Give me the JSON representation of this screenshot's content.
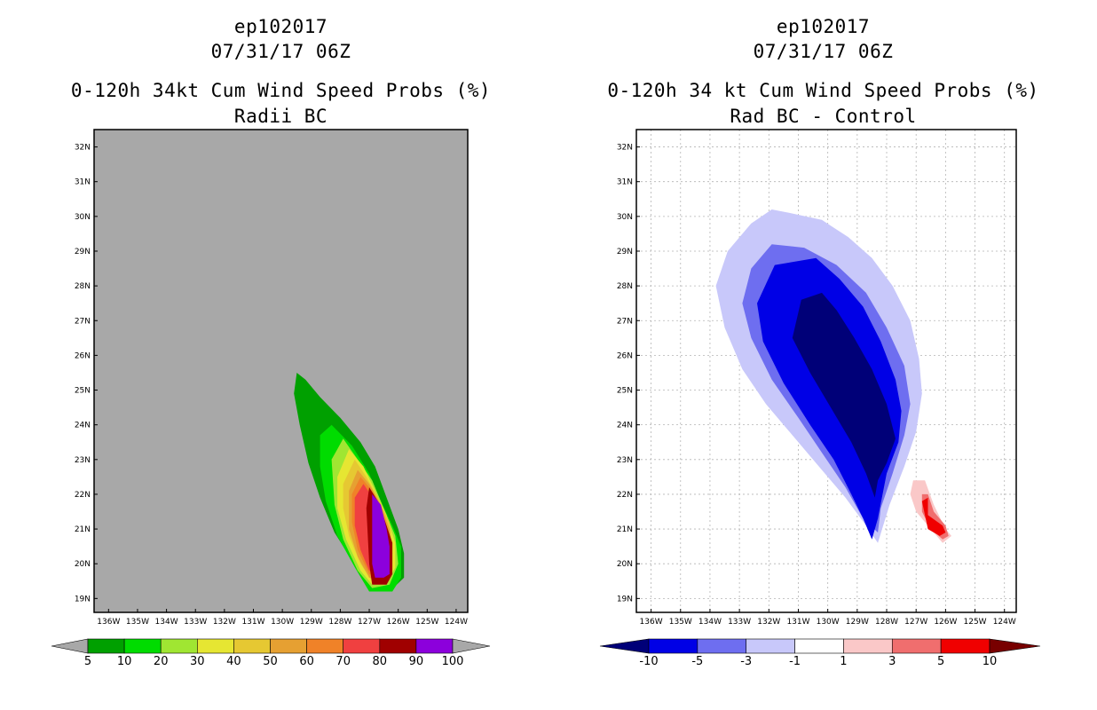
{
  "chart_data": [
    {
      "type": "contour-map",
      "storm_id": "ep102017",
      "datetime": "07/31/17 06Z",
      "title": "0-120h 34kt Cum Wind Speed Probs (%)",
      "subtitle": "Radii BC",
      "x_ticks": [
        "136W",
        "135W",
        "134W",
        "133W",
        "132W",
        "131W",
        "130W",
        "129W",
        "128W",
        "127W",
        "126W",
        "125W",
        "124W"
      ],
      "y_ticks": [
        "32N",
        "31N",
        "30N",
        "29N",
        "28N",
        "27N",
        "26N",
        "25N",
        "24N",
        "23N",
        "22N",
        "21N",
        "20N",
        "19N"
      ],
      "xlim": [
        -136.5,
        -123.6
      ],
      "ylim": [
        18.6,
        32.5
      ],
      "background": "#a8a8a8",
      "colorbar": {
        "labels": [
          "5",
          "10",
          "20",
          "30",
          "40",
          "50",
          "60",
          "70",
          "80",
          "90",
          "100"
        ],
        "colors": [
          "#00a000",
          "#00dc00",
          "#a0e632",
          "#e6e632",
          "#e6c832",
          "#e6a032",
          "#f08228",
          "#f04040",
          "#a00000",
          "#8c00dc"
        ],
        "end_color": "#a8a8a8"
      },
      "contours": [
        {
          "level": 5,
          "color": "#00a000",
          "points": [
            [
              -129.5,
              25.5
            ],
            [
              -129.2,
              25.3
            ],
            [
              -128.7,
              24.8
            ],
            [
              -128,
              24.2
            ],
            [
              -127.3,
              23.5
            ],
            [
              -126.8,
              22.8
            ],
            [
              -126.4,
              21.9
            ],
            [
              -126,
              21
            ],
            [
              -125.8,
              20.3
            ],
            [
              -125.8,
              19.6
            ],
            [
              -126.3,
              19.2
            ],
            [
              -127,
              19.3
            ],
            [
              -127.6,
              20.1
            ],
            [
              -128.2,
              20.9
            ],
            [
              -128.7,
              21.9
            ],
            [
              -129.1,
              22.9
            ],
            [
              -129.4,
              24
            ],
            [
              -129.6,
              24.9
            ]
          ]
        },
        {
          "level": 10,
          "color": "#00dc00",
          "points": [
            [
              -128.7,
              23.7
            ],
            [
              -128.3,
              24
            ],
            [
              -127.6,
              23.4
            ],
            [
              -127,
              22.6
            ],
            [
              -126.6,
              21.8
            ],
            [
              -126.2,
              21.1
            ],
            [
              -125.9,
              20.5
            ],
            [
              -125.9,
              19.6
            ],
            [
              -126.2,
              19.2
            ],
            [
              -127,
              19.2
            ],
            [
              -127.5,
              19.9
            ],
            [
              -128.1,
              20.8
            ],
            [
              -128.5,
              21.8
            ],
            [
              -128.7,
              22.8
            ]
          ]
        },
        {
          "level": 20,
          "color": "#a0e632",
          "points": [
            [
              -128.3,
              23
            ],
            [
              -127.9,
              23.6
            ],
            [
              -127.4,
              23
            ],
            [
              -126.9,
              22.4
            ],
            [
              -126.5,
              21.6
            ],
            [
              -126.1,
              20.8
            ],
            [
              -126,
              20
            ],
            [
              -126.3,
              19.4
            ],
            [
              -126.9,
              19.3
            ],
            [
              -127.4,
              19.8
            ],
            [
              -127.9,
              20.7
            ],
            [
              -128.2,
              21.7
            ]
          ]
        },
        {
          "level": 30,
          "color": "#e6e632",
          "points": [
            [
              -128.1,
              22.5
            ],
            [
              -127.7,
              23.3
            ],
            [
              -127.2,
              22.8
            ],
            [
              -126.8,
              22.1
            ],
            [
              -126.4,
              21.4
            ],
            [
              -126.1,
              20.6
            ],
            [
              -126.1,
              19.9
            ],
            [
              -126.4,
              19.4
            ],
            [
              -126.9,
              19.4
            ],
            [
              -127.3,
              19.8
            ],
            [
              -127.8,
              20.7
            ],
            [
              -128.1,
              21.6
            ]
          ]
        },
        {
          "level": 40,
          "color": "#e6c832",
          "points": [
            [
              -127.9,
              22.3
            ],
            [
              -127.5,
              23
            ],
            [
              -127.1,
              22.5
            ],
            [
              -126.7,
              21.9
            ],
            [
              -126.3,
              21.2
            ],
            [
              -126.2,
              20.5
            ],
            [
              -126.2,
              19.9
            ],
            [
              -126.5,
              19.5
            ],
            [
              -126.9,
              19.5
            ],
            [
              -127.3,
              20
            ],
            [
              -127.7,
              20.8
            ],
            [
              -127.9,
              21.6
            ]
          ]
        },
        {
          "level": 50,
          "color": "#e6a032",
          "points": [
            [
              -127.7,
              22.1
            ],
            [
              -127.4,
              22.7
            ],
            [
              -127,
              22.3
            ],
            [
              -126.6,
              21.7
            ],
            [
              -126.3,
              21
            ],
            [
              -126.2,
              20.3
            ],
            [
              -126.3,
              19.7
            ],
            [
              -126.6,
              19.5
            ],
            [
              -127,
              19.6
            ],
            [
              -127.4,
              20.2
            ],
            [
              -127.7,
              21
            ]
          ]
        },
        {
          "level": 60,
          "color": "#f08228",
          "points": [
            [
              -127.6,
              22
            ],
            [
              -127.3,
              22.5
            ],
            [
              -126.9,
              22.1
            ],
            [
              -126.5,
              21.4
            ],
            [
              -126.3,
              20.7
            ],
            [
              -126.3,
              19.8
            ],
            [
              -126.6,
              19.6
            ],
            [
              -127,
              19.7
            ],
            [
              -127.4,
              20.4
            ],
            [
              -127.6,
              21.2
            ]
          ]
        },
        {
          "level": 70,
          "color": "#f04040",
          "points": [
            [
              -127.5,
              21.9
            ],
            [
              -127.2,
              22.3
            ],
            [
              -126.8,
              21.8
            ],
            [
              -126.5,
              21.2
            ],
            [
              -126.4,
              20.6
            ],
            [
              -126.4,
              19.8
            ],
            [
              -126.7,
              19.7
            ],
            [
              -127,
              19.8
            ],
            [
              -127.3,
              20.4
            ],
            [
              -127.5,
              21.1
            ]
          ]
        },
        {
          "level": 80,
          "color": "#a00000",
          "points": [
            [
              -127.1,
              21.6
            ],
            [
              -127,
              22.2
            ],
            [
              -126.7,
              21.8
            ],
            [
              -126.4,
              21.1
            ],
            [
              -126.2,
              20.6
            ],
            [
              -126.2,
              19.7
            ],
            [
              -126.4,
              19.4
            ],
            [
              -126.9,
              19.4
            ],
            [
              -127,
              20
            ]
          ]
        },
        {
          "level": 90,
          "color": "#8c00dc",
          "points": [
            [
              -126.9,
              21.3
            ],
            [
              -126.9,
              22
            ],
            [
              -126.6,
              21.7
            ],
            [
              -126.4,
              21
            ],
            [
              -126.3,
              20.5
            ],
            [
              -126.3,
              19.7
            ],
            [
              -126.5,
              19.6
            ],
            [
              -126.8,
              19.6
            ],
            [
              -126.9,
              20
            ]
          ]
        }
      ]
    },
    {
      "type": "contour-map",
      "storm_id": "ep102017",
      "datetime": "07/31/17 06Z",
      "title": "0-120h 34 kt Cum Wind Speed Probs (%)",
      "subtitle": "Rad BC - Control",
      "x_ticks": [
        "136W",
        "135W",
        "134W",
        "133W",
        "132W",
        "131W",
        "130W",
        "129W",
        "128W",
        "127W",
        "126W",
        "125W",
        "124W"
      ],
      "y_ticks": [
        "32N",
        "31N",
        "30N",
        "29N",
        "28N",
        "27N",
        "26N",
        "25N",
        "24N",
        "23N",
        "22N",
        "21N",
        "20N",
        "19N"
      ],
      "xlim": [
        -136.5,
        -123.6
      ],
      "ylim": [
        18.6,
        32.5
      ],
      "background": "#ffffff",
      "grid": true,
      "colorbar": {
        "labels": [
          "-10",
          "-5",
          "-3",
          "-1",
          "1",
          "3",
          "5",
          "10"
        ],
        "colors": [
          "#0000e6",
          "#6e6ef0",
          "#c8c8fa",
          "#ffffff",
          "#fac8c8",
          "#f06e6e",
          "#f00000"
        ],
        "low_end_color": "#000078",
        "high_end_color": "#780000"
      },
      "contours": [
        {
          "level": -1,
          "color": "#c8c8fa",
          "points": [
            [
              -131.9,
              30.2
            ],
            [
              -131.3,
              30.1
            ],
            [
              -130.2,
              29.9
            ],
            [
              -129.3,
              29.4
            ],
            [
              -128.5,
              28.8
            ],
            [
              -127.8,
              28
            ],
            [
              -127.2,
              27
            ],
            [
              -126.9,
              25.9
            ],
            [
              -126.8,
              24.9
            ],
            [
              -127,
              23.8
            ],
            [
              -127.4,
              22.8
            ],
            [
              -127.9,
              21.7
            ],
            [
              -128.3,
              20.6
            ],
            [
              -128.7,
              21.1
            ],
            [
              -129.4,
              21.9
            ],
            [
              -130.3,
              22.8
            ],
            [
              -131.2,
              23.7
            ],
            [
              -132.1,
              24.6
            ],
            [
              -132.9,
              25.6
            ],
            [
              -133.5,
              26.8
            ],
            [
              -133.8,
              28
            ],
            [
              -133.4,
              29
            ],
            [
              -132.6,
              29.8
            ]
          ]
        },
        {
          "level": -3,
          "color": "#6e6ef0",
          "points": [
            [
              -131.9,
              29.2
            ],
            [
              -130.8,
              29.1
            ],
            [
              -129.7,
              28.6
            ],
            [
              -128.7,
              27.8
            ],
            [
              -128,
              26.8
            ],
            [
              -127.4,
              25.7
            ],
            [
              -127.2,
              24.6
            ],
            [
              -127.4,
              23.7
            ],
            [
              -127.8,
              22.6
            ],
            [
              -128.2,
              21.6
            ],
            [
              -128.3,
              20.9
            ],
            [
              -128.8,
              21.3
            ],
            [
              -129.4,
              22.2
            ],
            [
              -130.2,
              23.2
            ],
            [
              -131,
              24.2
            ],
            [
              -131.9,
              25.3
            ],
            [
              -132.6,
              26.5
            ],
            [
              -132.9,
              27.5
            ],
            [
              -132.6,
              28.5
            ]
          ]
        },
        {
          "level": -5,
          "color": "#0000e6",
          "points": [
            [
              -131.8,
              28.6
            ],
            [
              -130.4,
              28.8
            ],
            [
              -129.6,
              28.2
            ],
            [
              -128.8,
              27.4
            ],
            [
              -128.2,
              26.4
            ],
            [
              -127.7,
              25.3
            ],
            [
              -127.5,
              24.4
            ],
            [
              -127.6,
              23.5
            ],
            [
              -128,
              22.6
            ],
            [
              -128.3,
              21.3
            ],
            [
              -128.5,
              20.7
            ],
            [
              -128.8,
              21.3
            ],
            [
              -129.2,
              22
            ],
            [
              -129.8,
              23
            ],
            [
              -130.6,
              24
            ],
            [
              -131.5,
              25.2
            ],
            [
              -132.2,
              26.4
            ],
            [
              -132.4,
              27.5
            ]
          ]
        },
        {
          "level": -10,
          "color": "#000078",
          "points": [
            [
              -130.9,
              27.6
            ],
            [
              -130.2,
              27.8
            ],
            [
              -129.7,
              27.3
            ],
            [
              -129.1,
              26.5
            ],
            [
              -128.5,
              25.6
            ],
            [
              -128,
              24.6
            ],
            [
              -127.7,
              23.6
            ],
            [
              -128,
              22.9
            ],
            [
              -128.3,
              22.4
            ],
            [
              -128.4,
              21.9
            ],
            [
              -128.7,
              22.6
            ],
            [
              -129.2,
              23.5
            ],
            [
              -129.9,
              24.5
            ],
            [
              -130.6,
              25.5
            ],
            [
              -131.2,
              26.5
            ]
          ]
        },
        {
          "level": 1,
          "color": "#fac8c8",
          "points": [
            [
              -127.1,
              22.4
            ],
            [
              -126.7,
              22.4
            ],
            [
              -126.4,
              21.7
            ],
            [
              -126,
              21
            ],
            [
              -125.8,
              20.8
            ],
            [
              -126.1,
              20.6
            ],
            [
              -126.5,
              21
            ],
            [
              -127,
              21.5
            ],
            [
              -127.2,
              22
            ]
          ]
        },
        {
          "level": 3,
          "color": "#f06e6e",
          "points": [
            [
              -126.8,
              22
            ],
            [
              -126.6,
              22
            ],
            [
              -126.4,
              21.5
            ],
            [
              -126,
              21.1
            ],
            [
              -125.9,
              20.8
            ],
            [
              -126.1,
              20.7
            ],
            [
              -126.5,
              21
            ],
            [
              -126.8,
              21.5
            ]
          ]
        },
        {
          "level": 5,
          "color": "#f00000",
          "points": [
            [
              -126.8,
              21.8
            ],
            [
              -126.6,
              21.9
            ],
            [
              -126.6,
              21.4
            ],
            [
              -126.1,
              21.1
            ],
            [
              -126,
              20.9
            ],
            [
              -126.2,
              20.8
            ],
            [
              -126.6,
              21
            ]
          ]
        }
      ]
    }
  ]
}
